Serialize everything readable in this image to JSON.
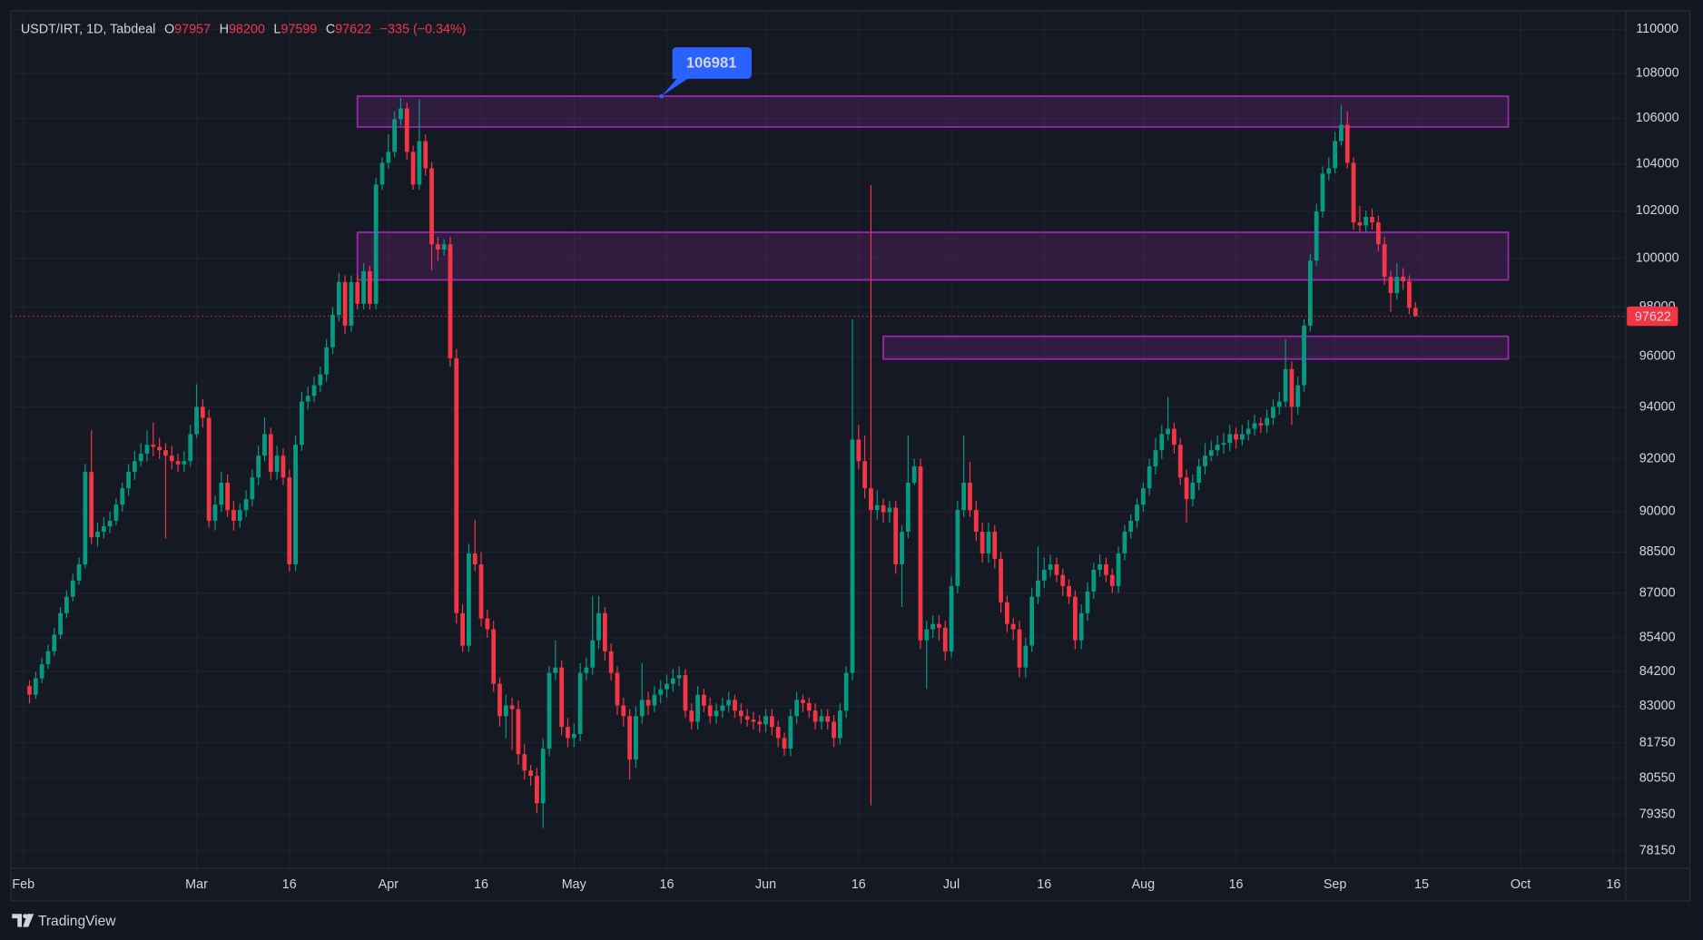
{
  "chart_data": {
    "type": "candlestick",
    "title": "USDT/IRT, 1D, Tabdeal",
    "ohlc_labels": [
      "O",
      "H",
      "L",
      "C"
    ],
    "ohlc_values": [
      97957,
      98200,
      97599,
      97622
    ],
    "change": "−335 (−0.34%)",
    "last_price": 97622,
    "up_color": "#089981",
    "down_color": "#f23645",
    "log_scale": true,
    "grid": true,
    "xlim": [
      "01-30",
      "10-18"
    ],
    "ylim": [
      77588,
      110747
    ],
    "yticks": [
      110000,
      108000,
      106000,
      104000,
      102000,
      100000,
      98000,
      96000,
      94000,
      92000,
      90000,
      88500,
      87000,
      85400,
      84200,
      83000,
      81750,
      80550,
      79350,
      78150
    ],
    "xticks": [
      {
        "value": "02-01",
        "label": "Feb"
      },
      {
        "value": "03-01",
        "label": "Mar"
      },
      {
        "value": "03-16",
        "label": "16"
      },
      {
        "value": "04-01",
        "label": "Apr"
      },
      {
        "value": "04-16",
        "label": "16"
      },
      {
        "value": "05-01",
        "label": "May"
      },
      {
        "value": "05-16",
        "label": "16"
      },
      {
        "value": "06-01",
        "label": "Jun"
      },
      {
        "value": "06-16",
        "label": "16"
      },
      {
        "value": "07-01",
        "label": "Jul"
      },
      {
        "value": "07-16",
        "label": "16"
      },
      {
        "value": "08-01",
        "label": "Aug"
      },
      {
        "value": "08-16",
        "label": "16"
      },
      {
        "value": "09-01",
        "label": "Sep"
      },
      {
        "value": "09-15",
        "label": "15"
      },
      {
        "value": "10-01",
        "label": "Oct"
      },
      {
        "value": "10-16",
        "label": "16"
      }
    ],
    "zones": [
      {
        "start": "03-27",
        "end": "09-29",
        "low": 105620,
        "high": 106981,
        "color": "#9c27b0"
      },
      {
        "start": "03-27",
        "end": "09-29",
        "low": 99110,
        "high": 101090,
        "color": "#9c27b0"
      },
      {
        "start": "06-20",
        "end": "09-29",
        "low": 95900,
        "high": 96810,
        "color": "#9c27b0"
      }
    ],
    "x": [
      "02-02",
      "02-03",
      "02-04",
      "02-05",
      "02-06",
      "02-07",
      "02-08",
      "02-09",
      "02-10",
      "02-11",
      "02-12",
      "02-13",
      "02-14",
      "02-15",
      "02-16",
      "02-17",
      "02-18",
      "02-19",
      "02-20",
      "02-21",
      "02-22",
      "02-23",
      "02-24",
      "02-25",
      "02-26",
      "02-27",
      "02-28",
      "03-01",
      "03-02",
      "03-03",
      "03-04",
      "03-05",
      "03-06",
      "03-07",
      "03-08",
      "03-09",
      "03-10",
      "03-11",
      "03-12",
      "03-13",
      "03-14",
      "03-15",
      "03-16",
      "03-17",
      "03-18",
      "03-19",
      "03-20",
      "03-21",
      "03-22",
      "03-23",
      "03-24",
      "03-25",
      "03-26",
      "03-27",
      "03-28",
      "03-29",
      "03-30",
      "03-31",
      "04-01",
      "04-02",
      "04-03",
      "04-04",
      "04-05",
      "04-06",
      "04-07",
      "04-08",
      "04-09",
      "04-10",
      "04-11",
      "04-12",
      "04-13",
      "04-14",
      "04-15",
      "04-16",
      "04-17",
      "04-18",
      "04-19",
      "04-20",
      "04-21",
      "04-22",
      "04-23",
      "04-24",
      "04-25",
      "04-26",
      "04-27",
      "04-28",
      "04-29",
      "04-30",
      "05-01",
      "05-02",
      "05-03",
      "05-04",
      "05-05",
      "05-06",
      "05-07",
      "05-08",
      "05-09",
      "05-10",
      "05-11",
      "05-12",
      "05-13",
      "05-14",
      "05-15",
      "05-16",
      "05-17",
      "05-18",
      "05-19",
      "05-20",
      "05-21",
      "05-22",
      "05-23",
      "05-24",
      "05-25",
      "05-26",
      "05-27",
      "05-28",
      "05-29",
      "05-30",
      "05-31",
      "06-01",
      "06-02",
      "06-03",
      "06-04",
      "06-05",
      "06-06",
      "06-07",
      "06-08",
      "06-09",
      "06-10",
      "06-11",
      "06-12",
      "06-13",
      "06-14",
      "06-15",
      "06-16",
      "06-17",
      "06-18",
      "06-19",
      "06-20",
      "06-21",
      "06-22",
      "06-23",
      "06-24",
      "06-25",
      "06-26",
      "06-27",
      "06-28",
      "06-29",
      "06-30",
      "07-01",
      "07-02",
      "07-03",
      "07-04",
      "07-05",
      "07-06",
      "07-07",
      "07-08",
      "07-09",
      "07-10",
      "07-11",
      "07-12",
      "07-13",
      "07-14",
      "07-15",
      "07-16",
      "07-17",
      "07-18",
      "07-19",
      "07-20",
      "07-21",
      "07-22",
      "07-23",
      "07-24",
      "07-25",
      "07-26",
      "07-27",
      "07-28",
      "07-29",
      "07-30",
      "07-31",
      "08-01",
      "08-02",
      "08-03",
      "08-04",
      "08-05",
      "08-06",
      "08-07",
      "08-08",
      "08-09",
      "08-10",
      "08-11",
      "08-12",
      "08-13",
      "08-14",
      "08-15",
      "08-16",
      "08-17",
      "08-18",
      "08-19",
      "08-20",
      "08-21",
      "08-22",
      "08-23",
      "08-24",
      "08-25",
      "08-26",
      "08-27",
      "08-28",
      "08-29",
      "08-30",
      "08-31",
      "09-01",
      "09-02",
      "09-03",
      "09-04",
      "09-05",
      "09-06",
      "09-07",
      "09-08",
      "09-09",
      "09-10",
      "09-11",
      "09-12",
      "09-13",
      "09-14"
    ],
    "open": [
      83700,
      83400,
      83970,
      84460,
      84920,
      85510,
      86280,
      86870,
      87460,
      88050,
      91500,
      89050,
      89250,
      89450,
      89660,
      90260,
      90880,
      91500,
      91910,
      92200,
      92540,
      92460,
      92330,
      92120,
      91910,
      91790,
      91910,
      92950,
      94010,
      93580,
      89660,
      90260,
      91090,
      90060,
      89660,
      90060,
      90470,
      91290,
      92120,
      92950,
      91500,
      92120,
      91290,
      88050,
      92540,
      94220,
      94440,
      94860,
      95290,
      96370,
      97680,
      99020,
      97240,
      99020,
      98130,
      99470,
      98130,
      103120,
      104060,
      104530,
      105960,
      106440,
      104530,
      103120,
      105000,
      103820,
      100590,
      100370,
      100590,
      95930,
      86280,
      85120,
      88450,
      88050,
      86090,
      85700,
      83780,
      82660,
      83030,
      82900,
      81360,
      80810,
      80630,
      79720,
      81550,
      84160,
      84350,
      82290,
      81910,
      82050,
      84160,
      84350,
      85310,
      86280,
      84920,
      84160,
      83030,
      82660,
      81180,
      82660,
      83220,
      83030,
      83400,
      83590,
      83780,
      83970,
      84080,
      82850,
      82470,
      83400,
      83030,
      82660,
      82850,
      83030,
      83220,
      82850,
      82660,
      82540,
      82470,
      82380,
      82660,
      82290,
      81910,
      81550,
      82660,
      83220,
      83110,
      82850,
      82470,
      82660,
      82470,
      81910,
      82850,
      84160,
      92740,
      91910,
      90880,
      90060,
      90240,
      89980,
      90150,
      88050,
      89250,
      91090,
      91710,
      85310,
      85700,
      85890,
      85760,
      84920,
      87260,
      90060,
      91090,
      90060,
      89250,
      88450,
      89250,
      88250,
      86670,
      85890,
      85700,
      84350,
      85120,
      86870,
      87460,
      87850,
      88050,
      87660,
      87260,
      86870,
      85310,
      86280,
      87060,
      87850,
      88050,
      87660,
      87260,
      88450,
      89250,
      89660,
      90260,
      90880,
      91710,
      92330,
      92950,
      93160,
      92540,
      91290,
      90470,
      91090,
      91710,
      92120,
      92330,
      92540,
      92610,
      92950,
      92740,
      92950,
      93160,
      93370,
      93290,
      93580,
      94010,
      94220,
      95500,
      94010,
      94860,
      97240,
      99910,
      101970,
      103590,
      103820,
      105000,
      105720,
      104060,
      101510,
      101380,
      101740,
      101510,
      100590,
      99240,
      98570,
      99240,
      99050,
      97957
    ],
    "high": [
      83900,
      84200,
      84700,
      85150,
      85750,
      86500,
      87100,
      87700,
      88300,
      91800,
      93100,
      89600,
      89800,
      90000,
      90500,
      91100,
      91800,
      92300,
      92600,
      93100,
      93400,
      92800,
      92600,
      92500,
      92200,
      92300,
      93300,
      94900,
      94300,
      93900,
      90600,
      91500,
      91400,
      90400,
      90300,
      90800,
      91600,
      92500,
      93600,
      93200,
      92500,
      92400,
      91600,
      92900,
      94600,
      94800,
      95200,
      95600,
      96700,
      98000,
      99400,
      99300,
      99300,
      99300,
      99800,
      99700,
      103400,
      104300,
      105300,
      106300,
      106900,
      106700,
      104800,
      106850,
      105300,
      104100,
      100900,
      100800,
      100900,
      96300,
      86600,
      88800,
      89700,
      88500,
      86400,
      86000,
      84000,
      83400,
      83300,
      83200,
      81700,
      81000,
      80900,
      81900,
      84400,
      85300,
      84600,
      82600,
      82400,
      84500,
      84700,
      86900,
      86900,
      86500,
      85200,
      84400,
      83300,
      82900,
      83000,
      84500,
      83500,
      83700,
      83900,
      84100,
      84300,
      84400,
      84300,
      83100,
      83700,
      83600,
      83300,
      83100,
      83300,
      83500,
      83400,
      83100,
      82900,
      82800,
      82700,
      82900,
      82900,
      82500,
      82100,
      82900,
      83500,
      83400,
      83300,
      83100,
      82900,
      82900,
      82700,
      83100,
      84400,
      97500,
      93300,
      92900,
      103100,
      90800,
      90500,
      90400,
      90400,
      89500,
      92900,
      92000,
      92000,
      86000,
      86200,
      86200,
      86000,
      87600,
      90400,
      92900,
      91900,
      90400,
      89600,
      89600,
      89500,
      88500,
      86900,
      86100,
      86000,
      85400,
      87200,
      88700,
      88300,
      88400,
      88300,
      87900,
      87500,
      87100,
      86600,
      87400,
      88100,
      88400,
      88300,
      87900,
      88700,
      89500,
      89900,
      90500,
      91100,
      92000,
      92800,
      93300,
      94400,
      93400,
      92800,
      91600,
      91400,
      92000,
      92600,
      92700,
      92900,
      93000,
      93300,
      93200,
      93300,
      93500,
      93700,
      93600,
      93900,
      94300,
      94600,
      96700,
      95800,
      95200,
      97500,
      100200,
      102300,
      103900,
      104300,
      105400,
      106600,
      106300,
      104300,
      102200,
      102000,
      102100,
      101800,
      100900,
      99500,
      99800,
      99600,
      99300,
      98200
    ],
    "low": [
      83100,
      83250,
      83800,
      84300,
      84750,
      85350,
      86100,
      86700,
      87300,
      87900,
      88800,
      88700,
      89000,
      89200,
      89500,
      90000,
      90600,
      91200,
      91700,
      91900,
      92100,
      92000,
      89000,
      91600,
      91500,
      91500,
      91700,
      92800,
      93200,
      89400,
      89300,
      90000,
      89800,
      89300,
      89400,
      89800,
      90200,
      91000,
      91900,
      91200,
      91200,
      91000,
      87800,
      87800,
      92300,
      93900,
      94200,
      94600,
      95000,
      96100,
      97400,
      96900,
      97000,
      97900,
      97900,
      97900,
      97900,
      102900,
      103800,
      104300,
      105700,
      104200,
      102900,
      102900,
      103500,
      99500,
      99900,
      100100,
      95600,
      85900,
      84900,
      84900,
      87800,
      85800,
      85400,
      83500,
      82300,
      81900,
      81500,
      81000,
      80500,
      80300,
      79400,
      78900,
      81300,
      83900,
      82000,
      81600,
      81600,
      81800,
      83900,
      84100,
      85000,
      84600,
      83900,
      82700,
      82300,
      80500,
      80900,
      82400,
      82700,
      82800,
      83100,
      83300,
      83500,
      83700,
      82600,
      82200,
      82200,
      82800,
      82400,
      82400,
      82600,
      82800,
      82600,
      82400,
      82300,
      82200,
      82100,
      82100,
      82000,
      81600,
      81300,
      81300,
      82400,
      82800,
      82600,
      82200,
      82200,
      82200,
      81600,
      81700,
      82600,
      83900,
      91600,
      90500,
      79650,
      89700,
      89600,
      89600,
      87700,
      86500,
      89000,
      91000,
      85000,
      83600,
      85400,
      85300,
      84600,
      84700,
      87000,
      89800,
      89800,
      88900,
      88100,
      88100,
      87900,
      86300,
      85600,
      85300,
      84000,
      84000,
      84900,
      86600,
      87200,
      87600,
      87400,
      86900,
      86600,
      85000,
      85000,
      86000,
      86800,
      87600,
      87400,
      87000,
      87000,
      88200,
      89000,
      89400,
      90000,
      90600,
      91400,
      92000,
      92700,
      92200,
      91000,
      89600,
      90200,
      90800,
      91400,
      91900,
      92100,
      92200,
      92300,
      92400,
      92500,
      92700,
      92900,
      93000,
      93000,
      93300,
      93700,
      94000,
      93300,
      93700,
      94600,
      97000,
      99700,
      101700,
      103300,
      103600,
      104800,
      103800,
      101200,
      101100,
      101100,
      101200,
      100300,
      98900,
      97800,
      98300,
      98700,
      97700,
      97599
    ],
    "close": [
      83400,
      83970,
      84460,
      84920,
      85510,
      86280,
      86870,
      87460,
      88050,
      91500,
      89050,
      89250,
      89450,
      89660,
      90260,
      90880,
      91500,
      91910,
      92200,
      92540,
      92460,
      92330,
      92120,
      91910,
      91790,
      91910,
      92950,
      94010,
      93580,
      89660,
      90260,
      91090,
      90060,
      89660,
      90060,
      90470,
      91290,
      92120,
      92950,
      91500,
      92120,
      91290,
      88050,
      92540,
      94220,
      94440,
      94860,
      95290,
      96370,
      97680,
      99020,
      97240,
      99020,
      98130,
      99470,
      98130,
      103120,
      104060,
      104530,
      105960,
      106440,
      104530,
      103120,
      105000,
      103820,
      100590,
      100370,
      100590,
      95930,
      86280,
      85120,
      88450,
      88050,
      86090,
      85700,
      83780,
      82660,
      83030,
      82900,
      81360,
      80810,
      80630,
      79720,
      81550,
      84160,
      84350,
      82290,
      81910,
      82050,
      84160,
      84350,
      85310,
      86280,
      84920,
      84160,
      83030,
      82660,
      81180,
      82660,
      83220,
      83030,
      83400,
      83590,
      83780,
      83970,
      84080,
      82850,
      82470,
      83400,
      83030,
      82660,
      82850,
      83030,
      83220,
      82850,
      82660,
      82540,
      82470,
      82380,
      82660,
      82290,
      81910,
      81550,
      82660,
      83220,
      83110,
      82850,
      82470,
      82660,
      82470,
      81910,
      82850,
      84160,
      92740,
      91910,
      90880,
      90060,
      90240,
      89980,
      90150,
      88050,
      89250,
      91090,
      91710,
      85310,
      85700,
      85890,
      85760,
      84920,
      87260,
      90060,
      91090,
      90060,
      89250,
      88450,
      89250,
      88250,
      86670,
      85890,
      85700,
      84350,
      85120,
      86870,
      87460,
      87850,
      88050,
      87660,
      87260,
      86870,
      85310,
      86280,
      87060,
      87850,
      88050,
      87660,
      87260,
      88450,
      89250,
      89660,
      90260,
      90880,
      91710,
      92330,
      92950,
      93160,
      92540,
      91290,
      90470,
      91090,
      91710,
      92120,
      92330,
      92540,
      92610,
      92950,
      92740,
      92950,
      93160,
      93370,
      93290,
      93580,
      94010,
      94220,
      95500,
      94010,
      94860,
      97240,
      99910,
      101970,
      103590,
      103820,
      105000,
      105720,
      104060,
      101510,
      101380,
      101740,
      101510,
      100590,
      99240,
      98570,
      99240,
      99050,
      97957,
      97622
    ]
  },
  "footer": {
    "brand": "TradingView"
  }
}
